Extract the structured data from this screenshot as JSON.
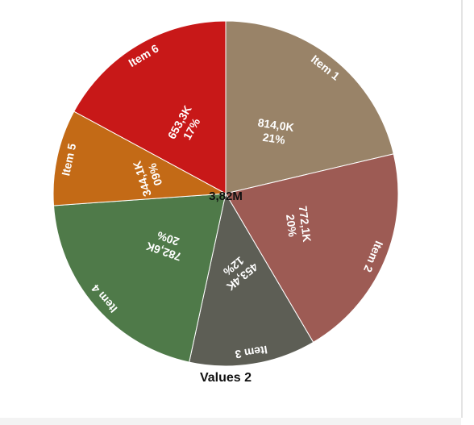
{
  "chart_data": {
    "type": "pie",
    "title": "Values 2",
    "total_label": "3,82M",
    "slices": [
      {
        "name": "Item 1",
        "value": 814.0,
        "value_label": "814,0K",
        "percent_label": "21%",
        "color": "#998368"
      },
      {
        "name": "Item 2",
        "value": 772.1,
        "value_label": "772,1K",
        "percent_label": "20%",
        "color": "#9d5b54"
      },
      {
        "name": "Item 3",
        "value": 453.4,
        "value_label": "453,4K",
        "percent_label": "12%",
        "color": "#5d5e55"
      },
      {
        "name": "Item 4",
        "value": 782.6,
        "value_label": "782,6K",
        "percent_label": "20%",
        "color": "#4f7a49"
      },
      {
        "name": "Item 5",
        "value": 344.1,
        "value_label": "344,1K",
        "percent_label": "09%",
        "color": "#c36a16"
      },
      {
        "name": "Item 6",
        "value": 653.3,
        "value_label": "653,3K",
        "percent_label": "17%",
        "color": "#c81818"
      }
    ]
  }
}
